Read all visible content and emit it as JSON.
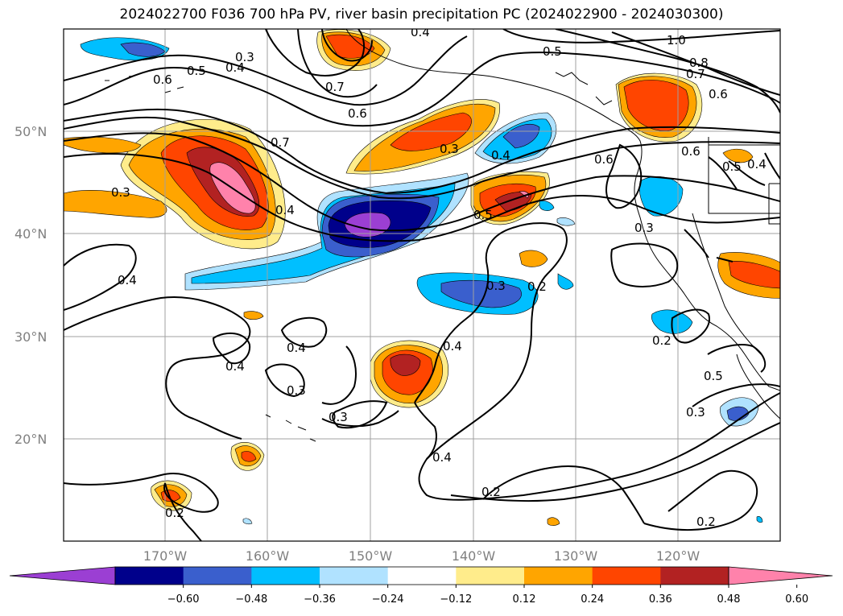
{
  "title": "2024022700 F036 700 hPa PV, river basin precipitation PC (2024022900 - 2024030300)",
  "lat_labels": [
    "50°N",
    "40°N",
    "30°N",
    "20°N"
  ],
  "lon_labels": [
    "170°W",
    "160°W",
    "150°W",
    "140°W",
    "130°W",
    "120°W"
  ],
  "contour_labels": [
    "0.3",
    "0.4",
    "0.5",
    "0.6",
    "0.7",
    "0.6",
    "0.4",
    "0.5",
    "1.0",
    "0.8",
    "0.7",
    "0.6",
    "0.3",
    "0.7",
    "0.4",
    "0.3",
    "0.4",
    "0.6",
    "0.6",
    "0.4",
    "0.5",
    "0.5",
    "0.3",
    "0.4",
    "0.3",
    "0.2",
    "0.4",
    "0.3",
    "0.3",
    "0.4",
    "0.4",
    "0.2",
    "0.4",
    "0.5",
    "0.3",
    "0.2",
    "0.2",
    "0.2"
  ],
  "colorbar": {
    "ticks": [
      "−0.60",
      "−0.48",
      "−0.36",
      "−0.24",
      "−0.12",
      "0.12",
      "0.24",
      "0.36",
      "0.48",
      "0.60"
    ],
    "colors": [
      "#9b3fd3",
      "#00008b",
      "#3a5fcd",
      "#00bfff",
      "#b0e2ff",
      "#ffffff",
      "#ffec8b",
      "#ffa500",
      "#ff4500",
      "#b22222",
      "#ff82ab"
    ]
  }
}
